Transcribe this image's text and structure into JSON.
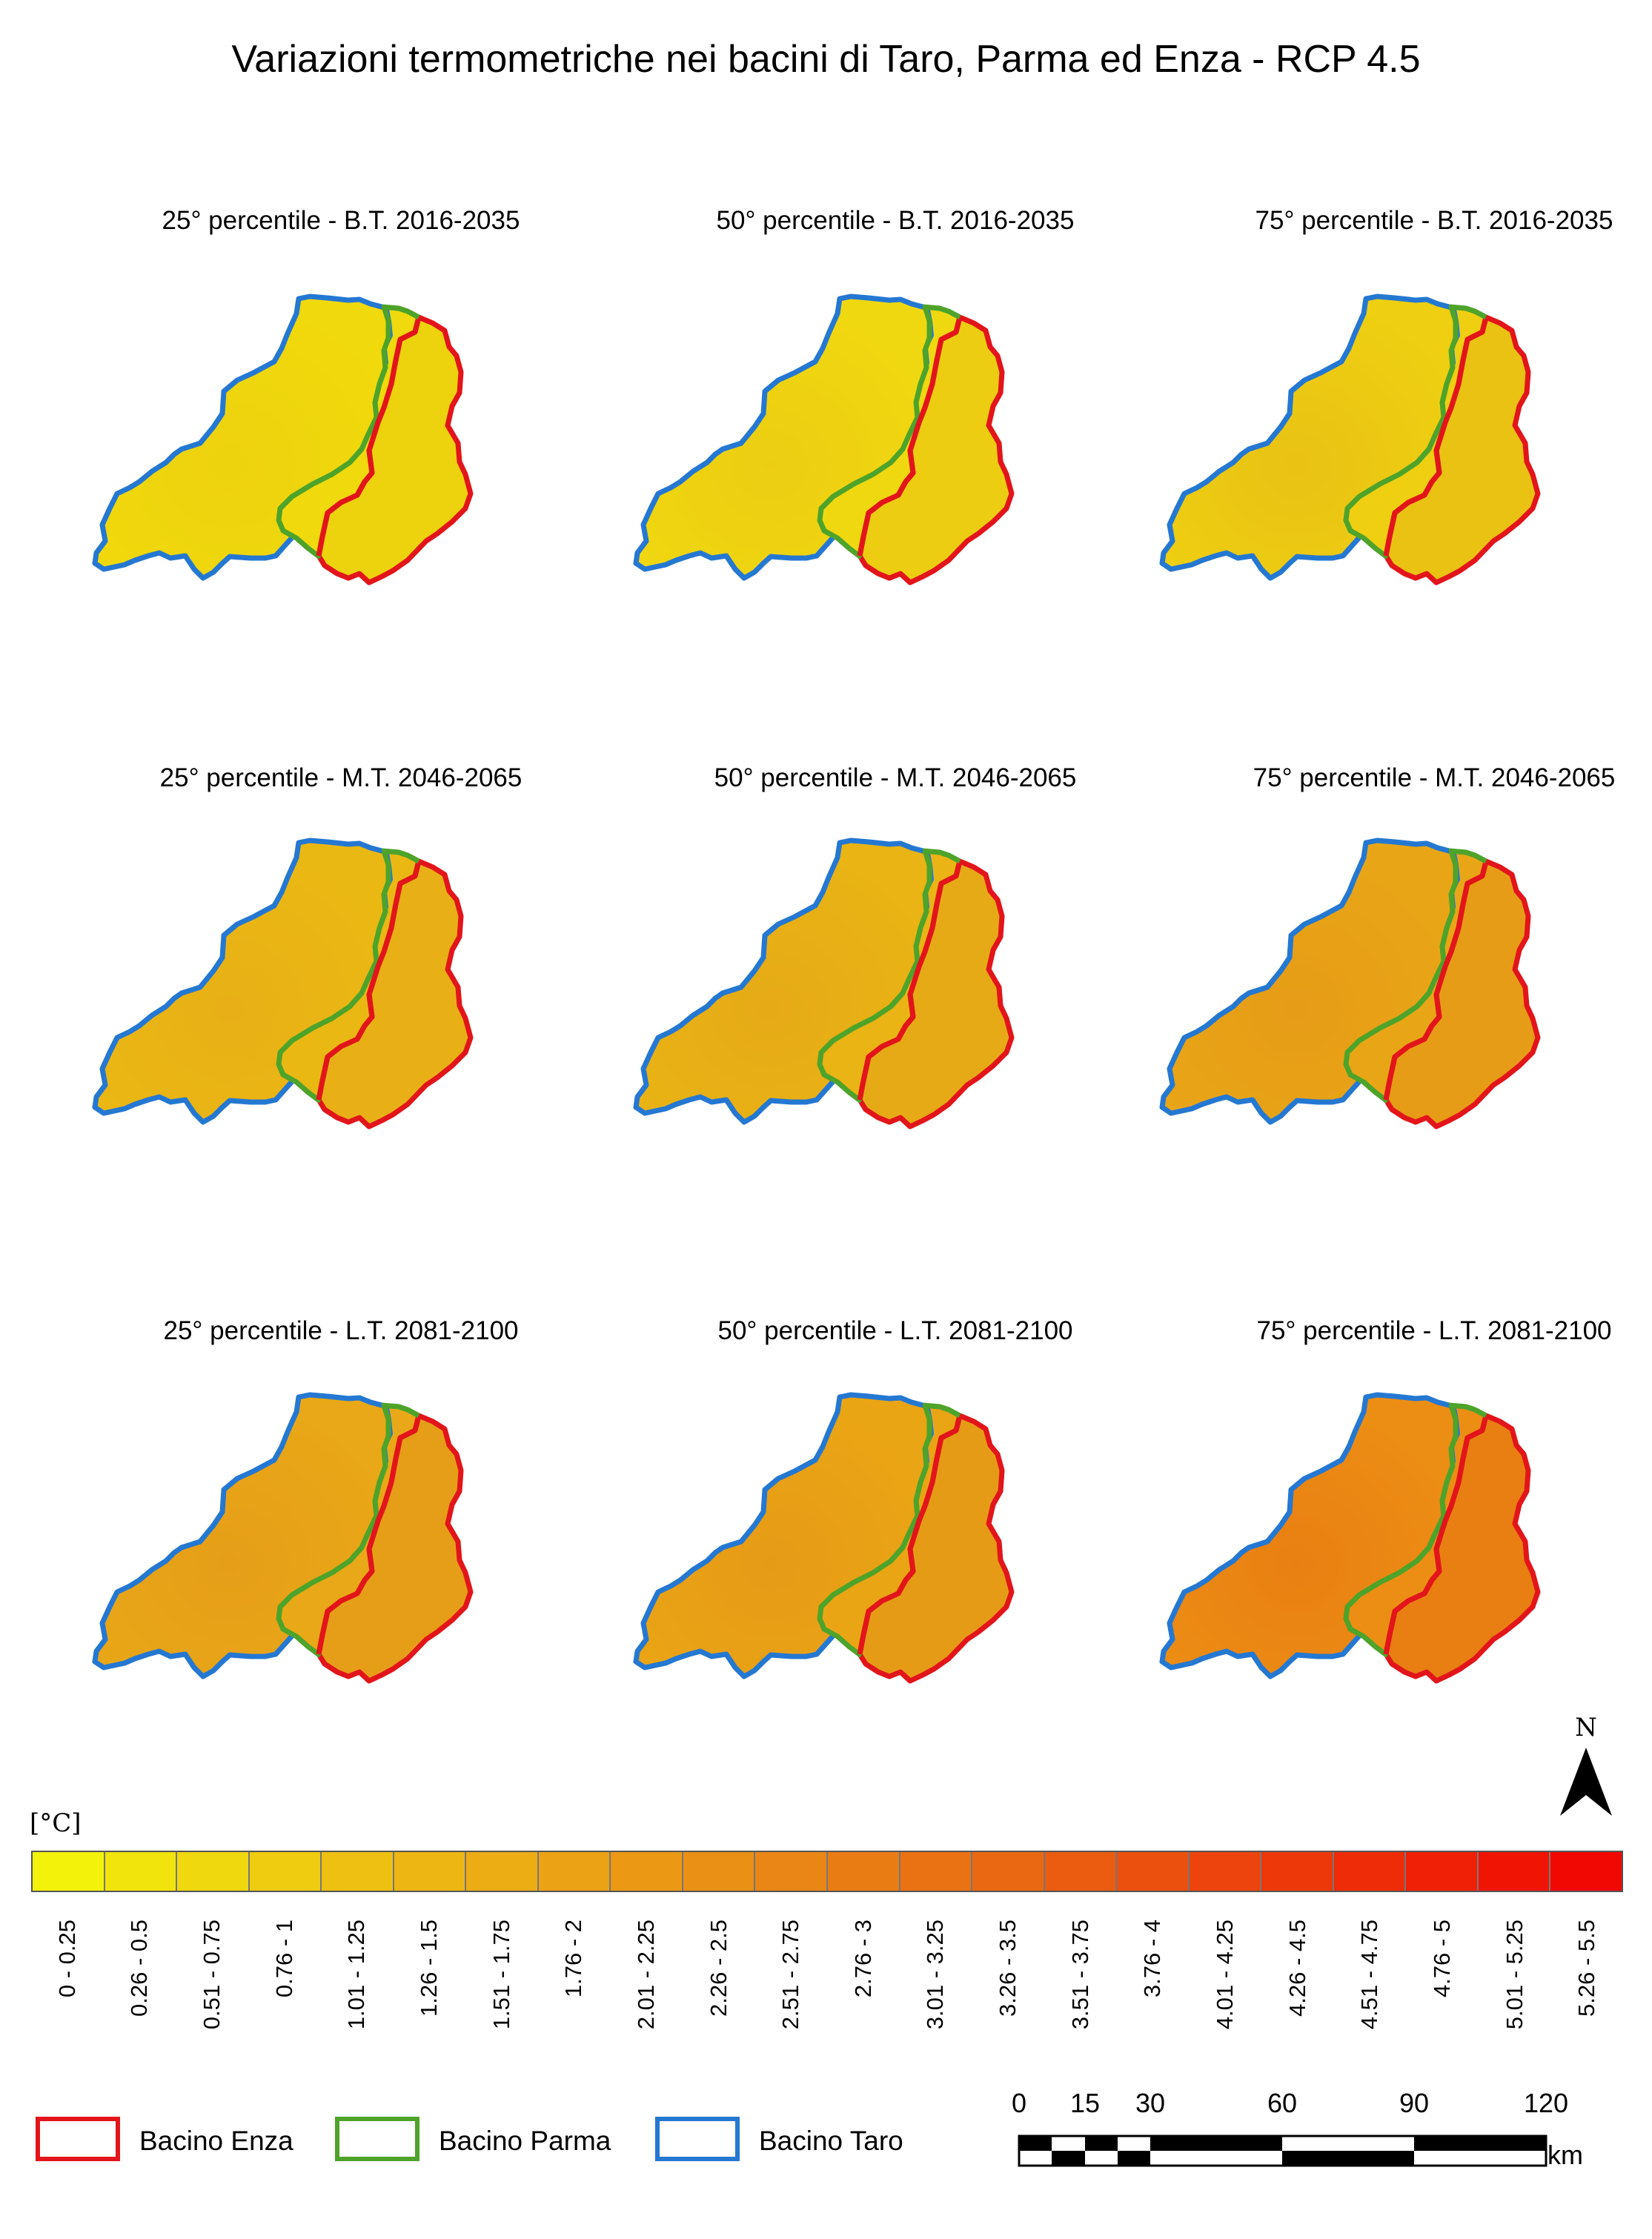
{
  "title": "Variazioni termometriche nei bacini di Taro, Parma ed Enza - RCP 4.5",
  "panels": [
    {
      "title": "25° percentile - B.T. 2016-2035",
      "fill": "#f0d90c",
      "fill_alt": "#edd20e"
    },
    {
      "title": "50° percentile - B.T. 2016-2035",
      "fill": "#f0d810",
      "fill_alt": "#eccd12"
    },
    {
      "title": "75° percentile - B.T. 2016-2035",
      "fill": "#eecf11",
      "fill_alt": "#e9c214"
    },
    {
      "title": "25° percentile - M.T. 2046-2065",
      "fill": "#eab813",
      "fill_alt": "#e8b016"
    },
    {
      "title": "50° percentile - M.T. 2046-2065",
      "fill": "#e9b414",
      "fill_alt": "#e6aa17"
    },
    {
      "title": "75° percentile - M.T. 2046-2065",
      "fill": "#e8a616",
      "fill_alt": "#e79c17"
    },
    {
      "title": "25° percentile - L.T. 2081-2100",
      "fill": "#e9a817",
      "fill_alt": "#e69e18"
    },
    {
      "title": "50° percentile - L.T. 2081-2100",
      "fill": "#eaa514",
      "fill_alt": "#e69b17"
    },
    {
      "title": "75° percentile - L.T. 2081-2100",
      "fill": "#ec8e14",
      "fill_alt": "#e97f12"
    }
  ],
  "legend": {
    "unit": "[°C]",
    "classes": [
      {
        "label": "0 - 0.25",
        "color": "#f2f20a"
      },
      {
        "label": "0.26 - 0.5",
        "color": "#f1e40c"
      },
      {
        "label": "0.51 - 0.75",
        "color": "#f0d80e"
      },
      {
        "label": "0.76 - 1",
        "color": "#efcc10"
      },
      {
        "label": "1.01 - 1.25",
        "color": "#eec012"
      },
      {
        "label": "1.26 - 1.5",
        "color": "#edb613"
      },
      {
        "label": "1.51 - 1.75",
        "color": "#ecac14"
      },
      {
        "label": "1.76 - 2",
        "color": "#eba215"
      },
      {
        "label": "2.01 - 2.25",
        "color": "#eb9915"
      },
      {
        "label": "2.26 - 2.5",
        "color": "#ea9015"
      },
      {
        "label": "2.51 - 2.75",
        "color": "#ea8615"
      },
      {
        "label": "2.76 - 3",
        "color": "#ea7c14"
      },
      {
        "label": "3.01 - 3.25",
        "color": "#ea7213"
      },
      {
        "label": "3.26 - 3.5",
        "color": "#ea6812"
      },
      {
        "label": "3.51 - 3.75",
        "color": "#eb5c10"
      },
      {
        "label": "3.76 - 4",
        "color": "#eb500e"
      },
      {
        "label": "4.01 - 4.25",
        "color": "#ec440c"
      },
      {
        "label": "4.26 - 4.5",
        "color": "#ed380a"
      },
      {
        "label": "4.51 - 4.75",
        "color": "#ee2c08"
      },
      {
        "label": "4.76 - 5",
        "color": "#ef2006"
      },
      {
        "label": "5.01 - 5.25",
        "color": "#f01404"
      },
      {
        "label": "5.26 - 5.5",
        "color": "#f20802"
      }
    ],
    "basins": [
      {
        "label": "Bacino Enza",
        "color": "#e2151b"
      },
      {
        "label": "Bacino Parma",
        "color": "#4ea32a"
      },
      {
        "label": "Bacino Taro",
        "color": "#2478d2"
      }
    ]
  },
  "scalebar": {
    "ticks": [
      "0",
      "15",
      "30",
      "60",
      "90",
      "120"
    ],
    "unit": "km"
  },
  "north_label": "N"
}
